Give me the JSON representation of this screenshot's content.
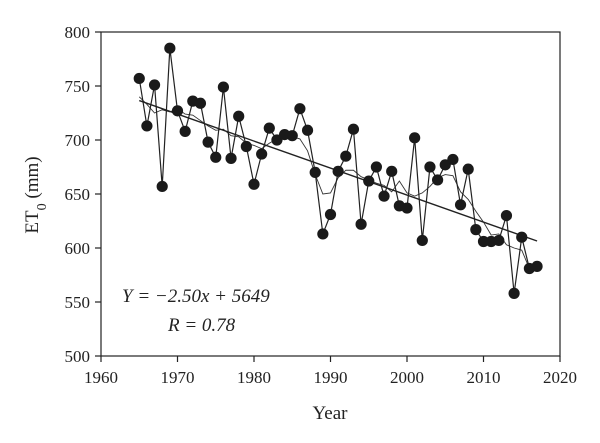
{
  "chart_data": {
    "type": "scatter",
    "title": "",
    "xlabel": "Year",
    "ylabel_main": "ET",
    "ylabel_sub": "0",
    "ylabel_unit": " (mm)",
    "xlim": [
      1960,
      2020
    ],
    "ylim": [
      500,
      800
    ],
    "xticks": [
      1960,
      1970,
      1980,
      1990,
      2000,
      2010,
      2020
    ],
    "yticks": [
      500,
      550,
      600,
      650,
      700,
      750,
      800
    ],
    "grid": false,
    "legend": "none",
    "series": [
      {
        "x": [
          1965,
          1966,
          1967,
          1968,
          1969,
          1970,
          1971,
          1972,
          1973,
          1974,
          1975,
          1976,
          1977,
          1978,
          1979,
          1980,
          1981,
          1982,
          1983,
          1984,
          1985,
          1986,
          1987,
          1988,
          1989,
          1990,
          1991,
          1992,
          1993,
          1994,
          1995,
          1996,
          1997,
          1998,
          1999,
          2000,
          2001,
          2002,
          2003,
          2004,
          2005,
          2006,
          2007,
          2008,
          2009,
          2010,
          2011,
          2012,
          2013,
          2014,
          2015,
          2016,
          2017
        ],
        "y": [
          757,
          713,
          751,
          657,
          785,
          727,
          708,
          736,
          734,
          698,
          684,
          749,
          683,
          722,
          694,
          659,
          687,
          711,
          700,
          705,
          704,
          729,
          709,
          670,
          613,
          631,
          671,
          685,
          710,
          622,
          662,
          675,
          648,
          671,
          639,
          637,
          702,
          607,
          675,
          663,
          677,
          682,
          640,
          673,
          617,
          606,
          606,
          607,
          630,
          558,
          610,
          581,
          583
        ]
      }
    ],
    "moving_average": {
      "x": [
        1965,
        1966,
        1967,
        1968,
        1969,
        1970,
        1971,
        1972,
        1973,
        1974,
        1975,
        1976,
        1977,
        1978,
        1979,
        1980,
        1981,
        1982,
        1983,
        1984,
        1985,
        1986,
        1987,
        1988,
        1989,
        1990,
        1991,
        1992,
        1993,
        1994,
        1995,
        1996,
        1997,
        1998,
        1999,
        2000,
        2001,
        2002,
        2003,
        2004,
        2005,
        2006,
        2007,
        2008,
        2009,
        2010,
        2011,
        2012,
        2013,
        2014,
        2015,
        2016
      ],
      "y": [
        740,
        733,
        725,
        728,
        726,
        729,
        724,
        723,
        718,
        713,
        709,
        710,
        704,
        703,
        697,
        695,
        692,
        697,
        701,
        702,
        703,
        701,
        690,
        668,
        650,
        651,
        665,
        672,
        672,
        666,
        663,
        660,
        658,
        652,
        662,
        651,
        648,
        651,
        657,
        665,
        668,
        667,
        652,
        645,
        634,
        624,
        612,
        613,
        603,
        600,
        598,
        581
      ]
    },
    "trendline": {
      "x": [
        1965,
        2017
      ],
      "y": [
        736.5,
        606.5
      ]
    },
    "annotations": {
      "equation": "Y = −2.50x + 5649",
      "r_value": "R = 0.78"
    }
  }
}
